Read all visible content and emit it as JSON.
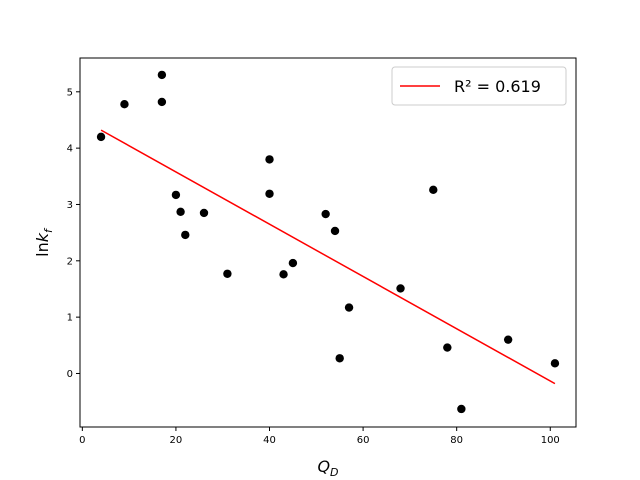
{
  "chart_data": {
    "type": "scatter",
    "title": "",
    "xlabel": "Q_D",
    "ylabel": "lnk_f",
    "xlim": [
      -0.5,
      105.5
    ],
    "ylim": [
      -0.95,
      5.6
    ],
    "xticks": [
      0,
      20,
      40,
      60,
      80,
      100
    ],
    "yticks": [
      0,
      1,
      2,
      3,
      4,
      5
    ],
    "grid": false,
    "legend_placement": "top-right",
    "legend_label": "R² = 0.619",
    "fit_line": {
      "x": [
        4,
        101
      ],
      "y": [
        4.32,
        -0.18
      ],
      "color": "#ff0000"
    },
    "marker_color": "#000000",
    "series": [
      {
        "x": [
          4,
          9,
          17,
          17,
          20,
          21,
          22,
          26,
          31,
          40,
          40,
          43,
          45,
          52,
          54,
          55,
          57,
          68,
          75,
          78,
          81,
          91,
          101
        ],
        "y": [
          4.2,
          4.78,
          5.3,
          4.82,
          3.17,
          2.87,
          2.46,
          2.85,
          1.77,
          3.8,
          3.19,
          1.76,
          1.96,
          2.83,
          2.53,
          0.27,
          1.17,
          1.51,
          3.26,
          0.46,
          -0.63,
          0.6,
          0.18
        ]
      }
    ]
  }
}
